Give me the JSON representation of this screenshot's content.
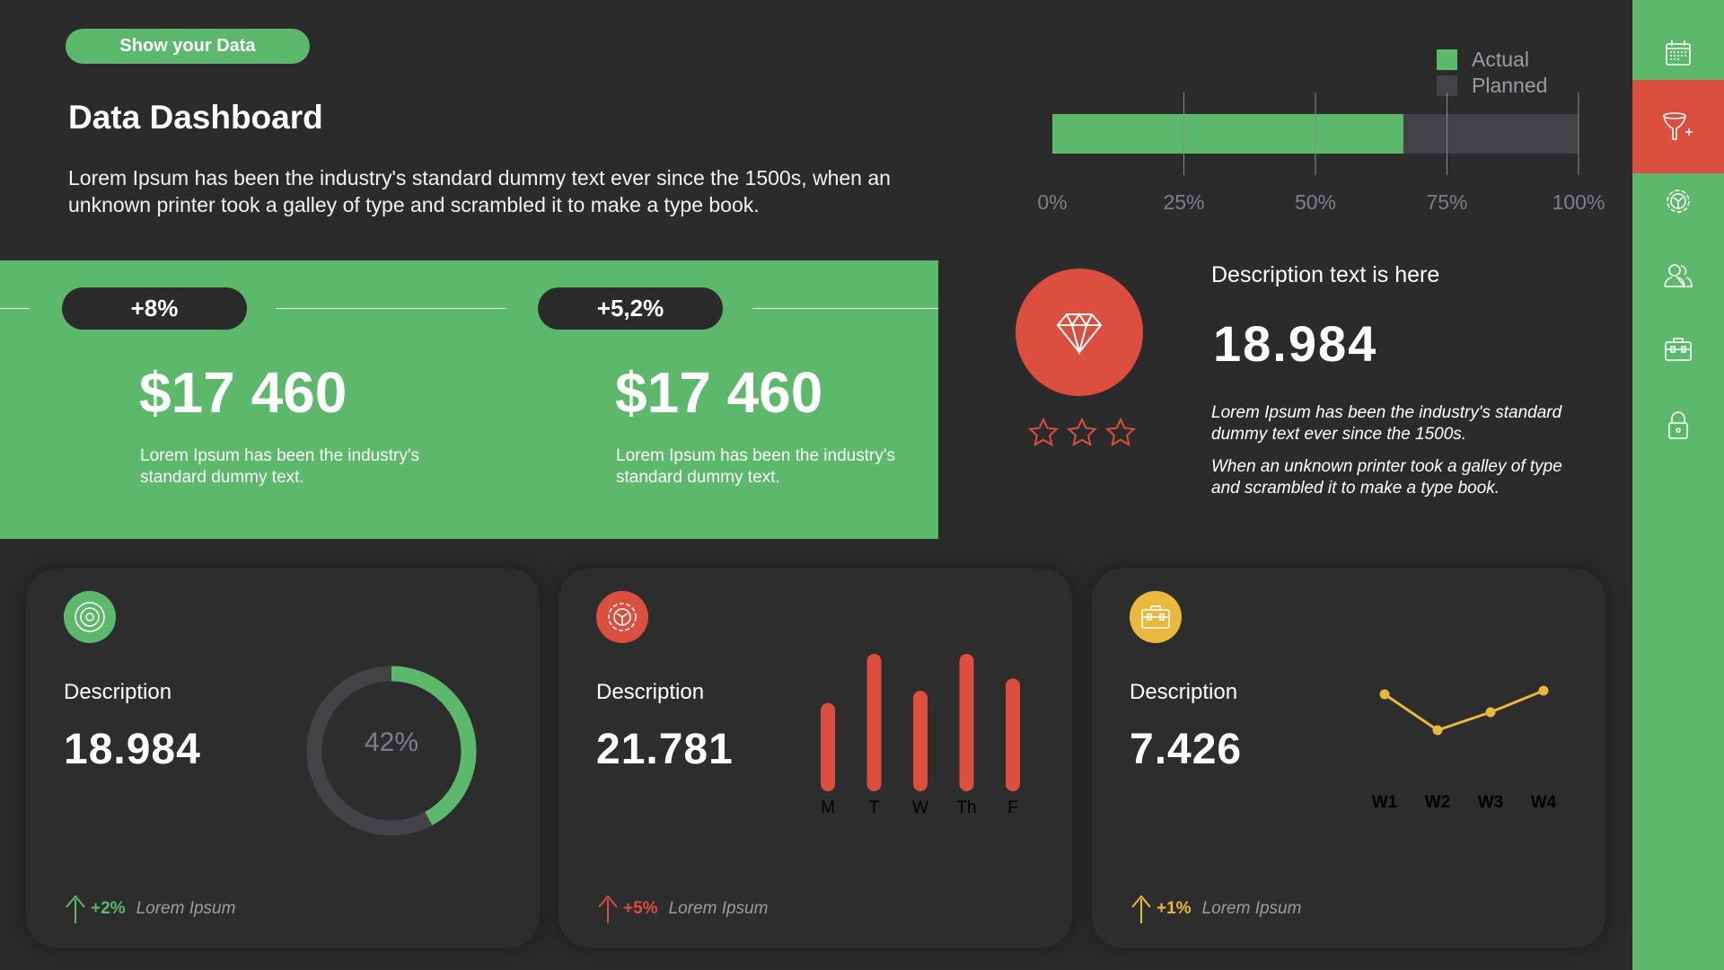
{
  "header": {
    "pill": "Show your  Data",
    "title": "Data Dashboard",
    "intro": "Lorem Ipsum has been the industry's standard dummy text ever since the 1500s, when an unknown printer took a galley of type and scrambled it to make a type book."
  },
  "progress_chart": {
    "legend": [
      "Actual",
      "Planned"
    ],
    "actual_percent": 66.7,
    "ticks": [
      "0%",
      "25%",
      "50%",
      "75%",
      "100%"
    ],
    "colors": {
      "actual": "#5cb96c",
      "planned": "#424247"
    }
  },
  "sidebar": {
    "items": [
      "calendar-icon",
      "funnel-add-icon",
      "gear-icon",
      "users-icon",
      "briefcase-icon",
      "lock-icon"
    ],
    "active": 1
  },
  "kpis": [
    {
      "badge": "+8%",
      "value": "$17 460",
      "text": "Lorem Ipsum has been the industry's standard dummy text."
    },
    {
      "badge": "+5,2%",
      "value": "$17 460",
      "text": "Lorem Ipsum has been the industry's standard dummy text."
    }
  ],
  "feature": {
    "heading": "Description text is here",
    "value": "18.984",
    "rating": 0,
    "rating_max": 3,
    "p1": "Lorem Ipsum has been the industry's standard dummy text ever since the 1500s.",
    "p2": "When an unknown printer took a galley of type and scrambled it to make a type book."
  },
  "cards": [
    {
      "label": "Description",
      "value": "18.984",
      "change": "+2%",
      "foot": "Lorem Ipsum",
      "color": "#5cb96c"
    },
    {
      "label": "Description",
      "value": "21.781",
      "change": "+5%",
      "foot": "Lorem Ipsum",
      "color": "#dc4f3f"
    },
    {
      "label": "Description",
      "value": "7.426",
      "change": "+1%",
      "foot": "Lorem Ipsum",
      "color": "#e9b93d"
    }
  ],
  "chart_data": [
    {
      "type": "pie",
      "title": "donut",
      "values": [
        42
      ],
      "label": "42%"
    },
    {
      "type": "bar",
      "categories": [
        "M",
        "T",
        "W",
        "Th",
        "F"
      ],
      "values": [
        60,
        100,
        70,
        100,
        80
      ],
      "ylim": [
        0,
        100
      ]
    },
    {
      "type": "line",
      "categories": [
        "W1",
        "W2",
        "W3",
        "W4"
      ],
      "values": [
        80,
        40,
        60,
        84
      ],
      "ylim": [
        0,
        100
      ]
    }
  ]
}
